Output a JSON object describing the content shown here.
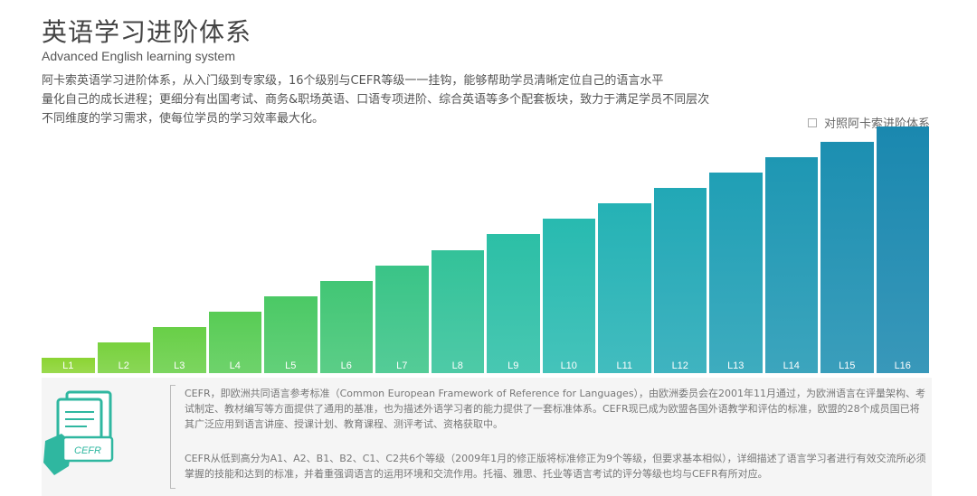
{
  "header": {
    "title": "英语学习进阶体系",
    "subtitle": "Advanced English learning system",
    "description_lines": [
      "阿卡索英语学习进阶体系，从入门级到专家级，16个级别与CEFR等级一一挂钩，能够帮助学员清晰定位自己的语言水平",
      "量化自己的成长进程；更细分有出国考试、商务&职场英语、口语专项进阶、综合英语等多个配套板块，致力于满足学员不同层次",
      "不同维度的学习需求，使每位学员的学习效率最大化。"
    ]
  },
  "compare": {
    "label": "对照阿卡索进阶体系"
  },
  "chart_data": {
    "type": "bar",
    "title": "英语学习进阶体系",
    "categories": [
      "L1",
      "L2",
      "L3",
      "L4",
      "L5",
      "L6",
      "L7",
      "L8",
      "L9",
      "L10",
      "L11",
      "L12",
      "L13",
      "L14",
      "L15",
      "L16"
    ],
    "values": [
      1,
      2,
      3,
      4,
      5,
      6,
      7,
      8,
      9,
      10,
      11,
      12,
      13,
      14,
      15,
      16
    ],
    "ylim": [
      0,
      16
    ],
    "xlabel": "",
    "ylabel": "",
    "grid": false,
    "colors": [
      "#8bd433",
      "#78d13d",
      "#68cf47",
      "#58cc55",
      "#4bc965",
      "#42c675",
      "#3ac487",
      "#33c299",
      "#2cbfa6",
      "#28bab0",
      "#25b2b5",
      "#22a8b6",
      "#209fb5",
      "#1e97b3",
      "#1c8fb1",
      "#1a88af"
    ]
  },
  "cefr_panel": {
    "icon_label": "CEFR",
    "paragraph1": "CEFR，即欧洲共同语言参考标准（Common European Framework of Reference for Languages），由欧洲委员会在2001年11月通过，为欧洲语言在评量架构、考试制定、教材编写等方面提供了通用的基准，也为描述外语学习者的能力提供了一套标准体系。CEFR现已成为欧盟各国外语教学和评估的标准，欧盟的28个成员国已将其广泛应用到语言讲座、授课计划、教育课程、测评考试、资格获取中。",
    "paragraph2": "CEFR从低到高分为A1、A2、B1、B2、C1、C2共6个等级（2009年1月的修正版将标准修正为9个等级，但要求基本相似），详细描述了语言学习者进行有效交流所必须掌握的技能和达到的标准，并着重强调语言的运用环境和交流作用。托福、雅思、托业等语言考试的评分等级也均与CEFR有所对应。"
  }
}
